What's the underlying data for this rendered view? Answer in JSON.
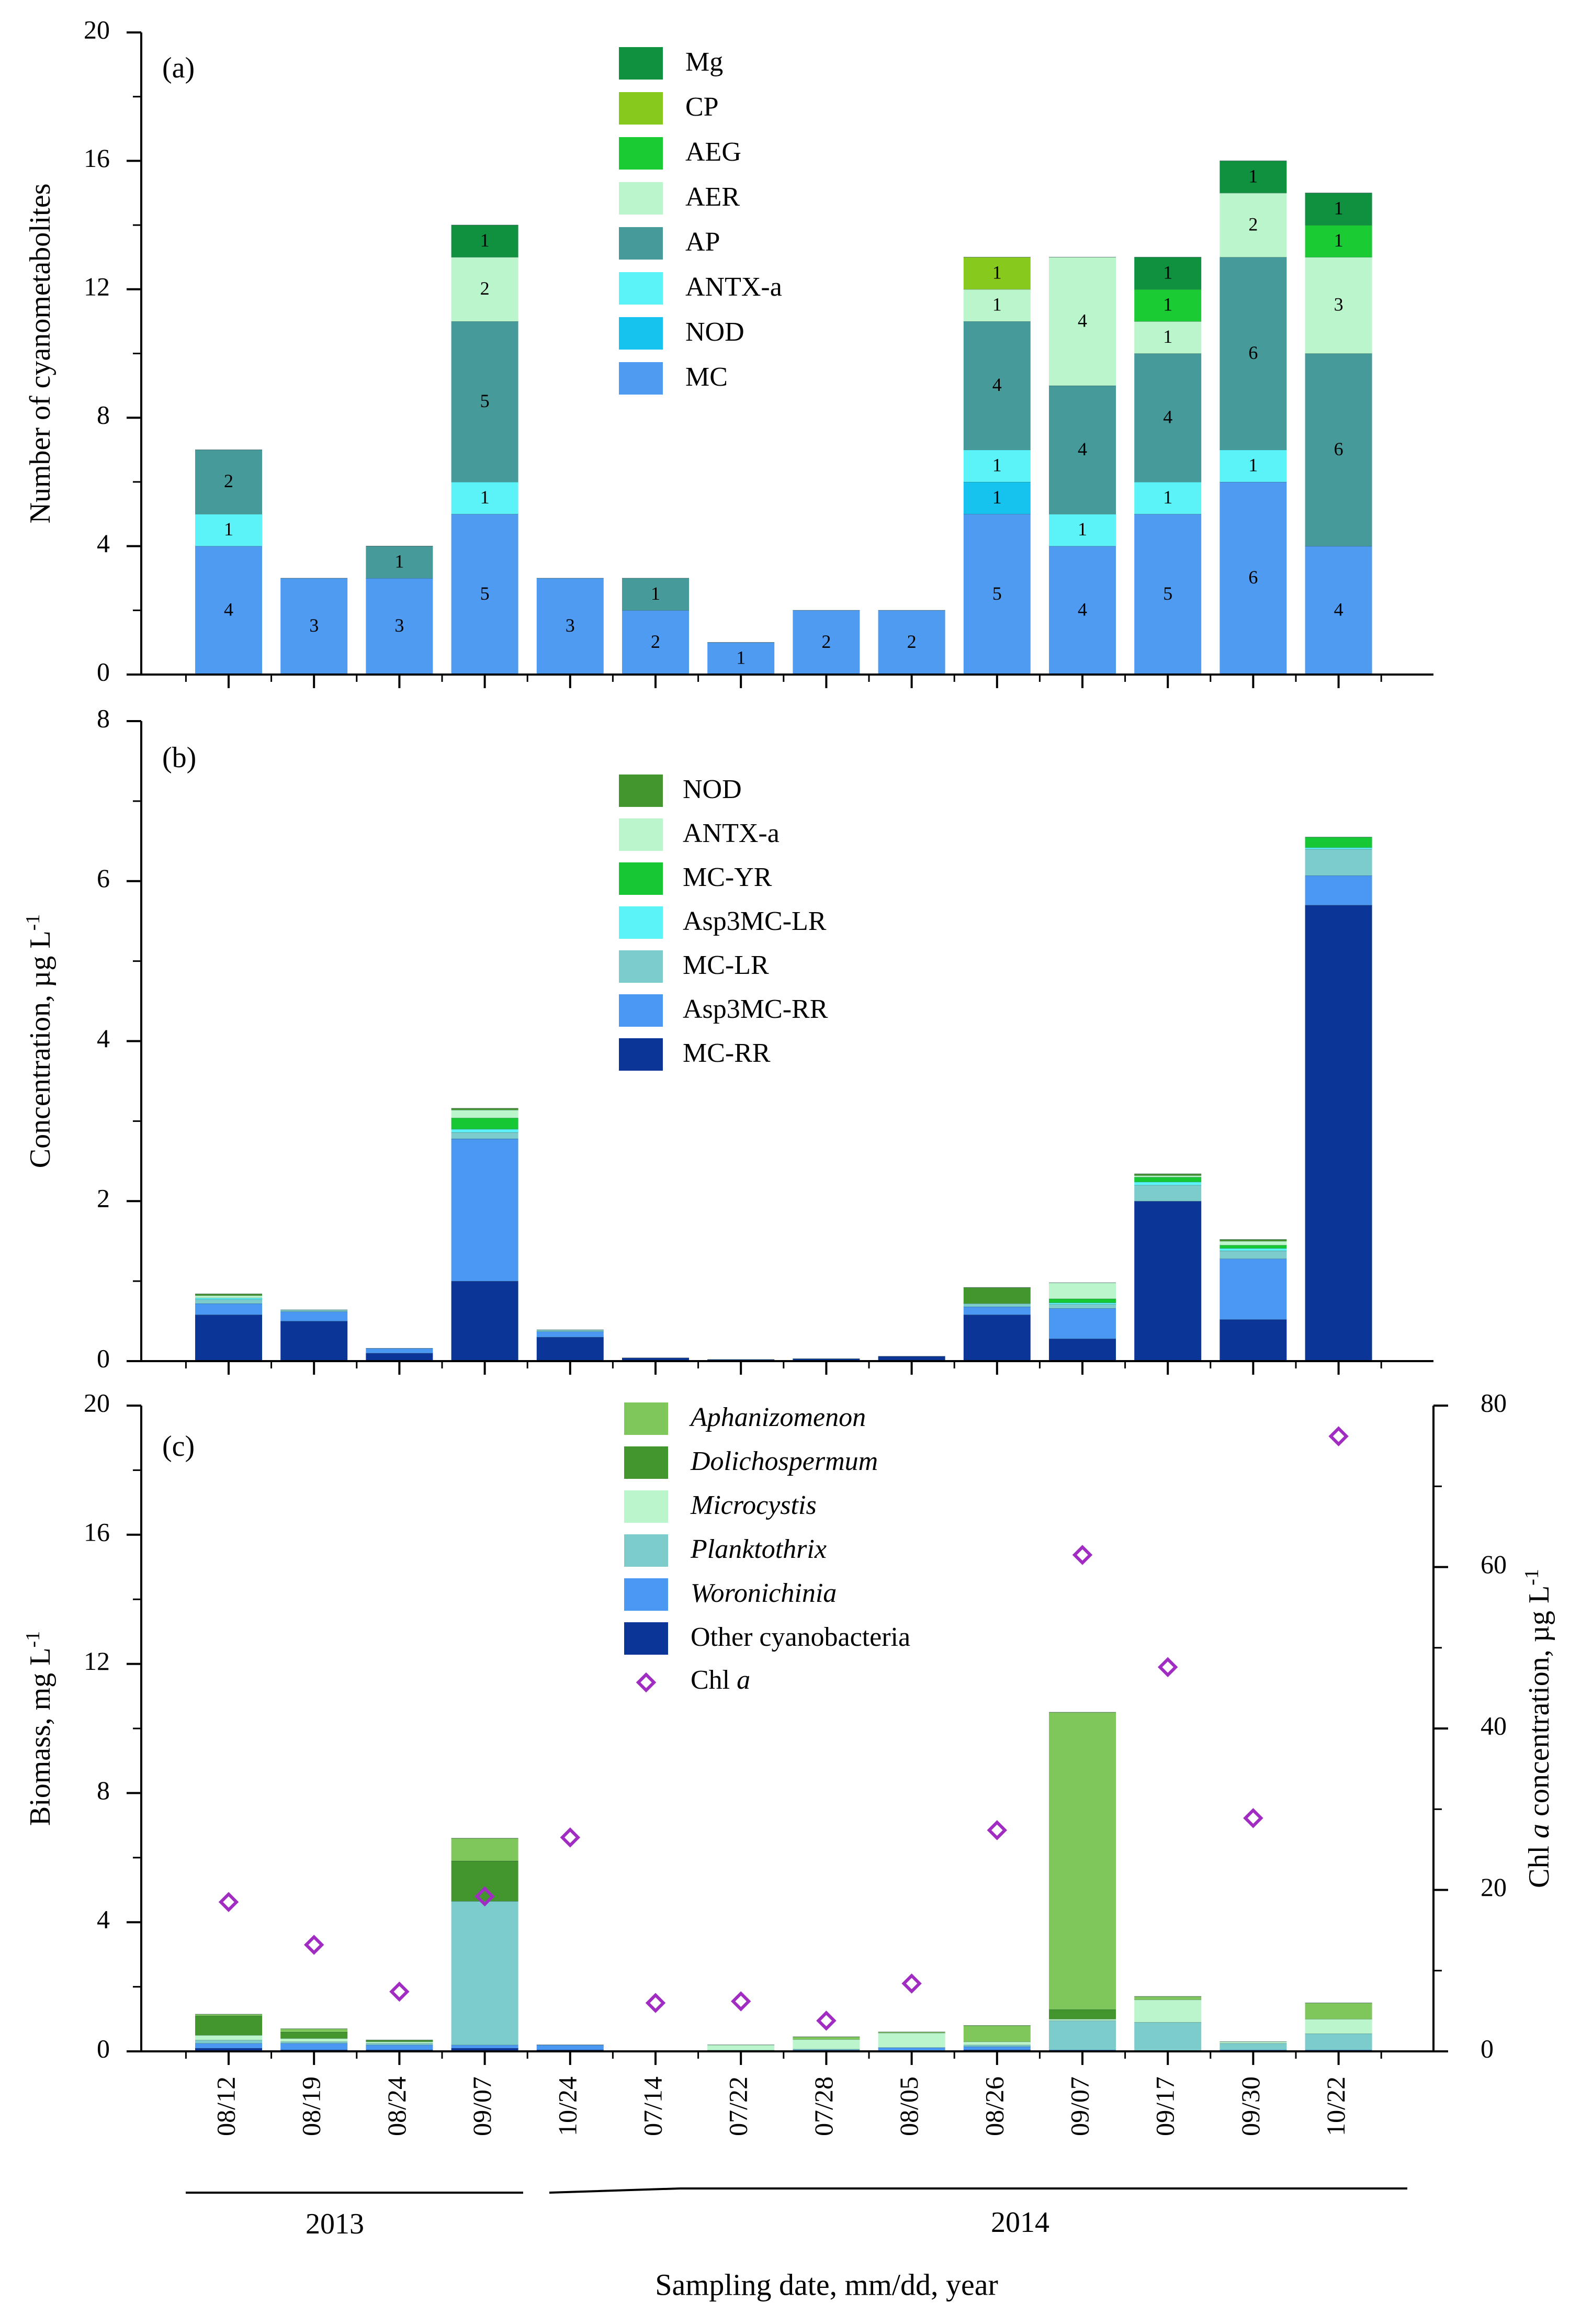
{
  "categories": [
    "08/12",
    "08/19",
    "08/24",
    "09/07",
    "10/24",
    "07/14",
    "07/22",
    "07/28",
    "08/05",
    "08/26",
    "09/07",
    "09/17",
    "09/30",
    "10/22"
  ],
  "x_axis": {
    "title": "Sampling date, mm/dd, year",
    "year_groups": [
      {
        "label": "2013",
        "from": 0,
        "to": 4
      },
      {
        "label": "2014",
        "from": 5,
        "to": 13
      }
    ]
  },
  "chart_data": [
    {
      "panel": "(a)",
      "type": "bar",
      "stacked": true,
      "ylabel": "Number of cyanometabolites",
      "ylim": [
        0,
        20
      ],
      "yticks": [
        0,
        4,
        8,
        12,
        16,
        20
      ],
      "ytick_labels": [
        "0",
        "4",
        "8",
        "12",
        "16",
        "20"
      ],
      "legend_order": [
        "Mg",
        "CP",
        "AEG",
        "AER",
        "AP",
        "ANTX-a",
        "NOD",
        "MC"
      ],
      "series": [
        {
          "name": "MC",
          "color": "#4f9bf2",
          "values": [
            4,
            3,
            3,
            5,
            3,
            2,
            1,
            2,
            2,
            5,
            4,
            5,
            6,
            4
          ],
          "labels": [
            "4",
            "3",
            "3",
            "5",
            "3",
            "2",
            "1",
            "2",
            "2",
            "5",
            "4",
            "5",
            "6",
            "4"
          ]
        },
        {
          "name": "NOD",
          "color": "#16c3ee",
          "values": [
            0,
            0,
            0,
            0,
            0,
            0,
            0,
            0,
            0,
            1,
            0,
            0,
            0,
            0
          ],
          "labels": [
            "",
            "",
            "",
            "",
            "",
            "",
            "",
            "",
            "",
            "1",
            "",
            "",
            "",
            ""
          ]
        },
        {
          "name": "ANTX-a",
          "color": "#5cf3f8",
          "values": [
            1,
            0,
            0,
            1,
            0,
            0,
            0,
            0,
            0,
            1,
            1,
            1,
            1,
            0
          ],
          "labels": [
            "1",
            "",
            "",
            "1",
            "",
            "",
            "",
            "",
            "",
            "1",
            "1",
            "1",
            "1",
            ""
          ]
        },
        {
          "name": "AP",
          "color": "#469a9a",
          "values": [
            2,
            0,
            1,
            5,
            0,
            1,
            0,
            0,
            0,
            4,
            4,
            4,
            6,
            6
          ],
          "labels": [
            "2",
            "",
            "1",
            "5",
            "",
            "1",
            "",
            "",
            "",
            "4",
            "4",
            "4",
            "6",
            "6"
          ]
        },
        {
          "name": "AER",
          "color": "#baf5cb",
          "values": [
            0,
            0,
            0,
            2,
            0,
            0,
            0,
            0,
            0,
            1,
            4,
            1,
            2,
            3
          ],
          "labels": [
            "",
            "",
            "",
            "2",
            "",
            "",
            "",
            "",
            "",
            "1",
            "4",
            "1",
            "2",
            "3"
          ]
        },
        {
          "name": "AEG",
          "color": "#1acb34",
          "values": [
            0,
            0,
            0,
            0,
            0,
            0,
            0,
            0,
            0,
            0,
            0,
            1,
            0,
            1
          ],
          "labels": [
            "",
            "",
            "",
            "",
            "",
            "",
            "",
            "",
            "",
            "",
            "",
            "1",
            "",
            "1"
          ]
        },
        {
          "name": "CP",
          "color": "#88c91e",
          "values": [
            0,
            0,
            0,
            0,
            0,
            0,
            0,
            0,
            0,
            1,
            0,
            0,
            0,
            0
          ],
          "labels": [
            "",
            "",
            "",
            "",
            "",
            "",
            "",
            "",
            "",
            "1",
            "",
            "",
            "",
            ""
          ]
        },
        {
          "name": "Mg",
          "color": "#0f9140",
          "values": [
            0,
            0,
            0,
            1,
            0,
            0,
            0,
            0,
            0,
            0,
            0,
            1,
            1,
            1
          ],
          "labels": [
            "",
            "",
            "",
            "1",
            "",
            "",
            "",
            "",
            "",
            "",
            "",
            "1",
            "1",
            "1"
          ]
        }
      ]
    },
    {
      "panel": "(b)",
      "type": "bar",
      "stacked": true,
      "ylabel_main": "Concentration, µg L",
      "ylabel_sup": "-1",
      "ylim": [
        0,
        8
      ],
      "yticks": [
        0,
        2,
        4,
        6,
        8
      ],
      "ytick_labels": [
        "0",
        "2",
        "4",
        "6",
        "8"
      ],
      "legend_order": [
        "NOD",
        "ANTX-a",
        "MC-YR",
        "Asp3MC-LR",
        "MC-LR",
        "Asp3MC-RR",
        "MC-RR"
      ],
      "series": [
        {
          "name": "MC-RR",
          "color": "#0b3596",
          "values": [
            0.58,
            0.5,
            0.1,
            1.0,
            0.3,
            0.04,
            0.02,
            0.03,
            0.06,
            0.58,
            0.28,
            2.0,
            0.52,
            5.7
          ]
        },
        {
          "name": "Asp3MC-RR",
          "color": "#4b98f2",
          "values": [
            0.14,
            0.12,
            0.06,
            1.78,
            0.07,
            0,
            0,
            0,
            0,
            0.1,
            0.38,
            0,
            0.76,
            0.37
          ]
        },
        {
          "name": "MC-LR",
          "color": "#7dcccc",
          "values": [
            0.05,
            0.02,
            0,
            0.08,
            0.02,
            0,
            0,
            0,
            0,
            0.04,
            0.05,
            0.2,
            0.1,
            0.33
          ]
        },
        {
          "name": "Asp3MC-LR",
          "color": "#5cf3f8",
          "values": [
            0.02,
            0,
            0,
            0.04,
            0,
            0,
            0,
            0,
            0,
            0,
            0.02,
            0.04,
            0.03,
            0.02
          ]
        },
        {
          "name": "MC-YR",
          "color": "#16c934",
          "values": [
            0,
            0,
            0,
            0.14,
            0,
            0,
            0,
            0,
            0,
            0,
            0.05,
            0.06,
            0.04,
            0.13
          ]
        },
        {
          "name": "ANTX-a",
          "color": "#baf5cb",
          "values": [
            0.03,
            0,
            0,
            0.1,
            0,
            0,
            0,
            0,
            0,
            0,
            0.2,
            0.02,
            0.05,
            0
          ]
        },
        {
          "name": "NOD",
          "color": "#43962d",
          "values": [
            0.02,
            0,
            0,
            0.02,
            0,
            0,
            0,
            0,
            0,
            0.2,
            0,
            0.02,
            0.02,
            0
          ]
        }
      ]
    },
    {
      "panel": "(c)",
      "type": "bar",
      "stacked": true,
      "ylabel_main": "Biomass, mg L",
      "ylabel_sup": "-1",
      "ylim": [
        0,
        20
      ],
      "yticks": [
        0,
        4,
        8,
        12,
        16,
        20
      ],
      "ytick_labels": [
        "0",
        "4",
        "8",
        "12",
        "16",
        "20"
      ],
      "legend_order": [
        "Aphanizomenon",
        "Dolichospermum",
        "Microcystis",
        "Planktothrix",
        "Woronichinia",
        "Other cyanobacteria",
        "Chl a"
      ],
      "series": [
        {
          "name": "Other cyanobacteria",
          "color": "#0b3596",
          "italic": false,
          "values": [
            0.1,
            0.05,
            0.05,
            0.1,
            0.05,
            0,
            0,
            0,
            0,
            0.05,
            0,
            0,
            0,
            0
          ]
        },
        {
          "name": "Woronichinia",
          "color": "#4b98f2",
          "italic": true,
          "values": [
            0.15,
            0.2,
            0.15,
            0.1,
            0.15,
            0.01,
            0.02,
            0.05,
            0.12,
            0.1,
            0.05,
            0,
            0.05,
            0.05
          ]
        },
        {
          "name": "Planktothrix",
          "color": "#7dcccc",
          "italic": true,
          "values": [
            0.1,
            0.05,
            0.05,
            4.45,
            0,
            0,
            0.02,
            0.02,
            0,
            0.05,
            0.9,
            0.9,
            0.2,
            0.5
          ]
        },
        {
          "name": "Microcystis",
          "color": "#baf5cb",
          "italic": true,
          "values": [
            0.15,
            0.1,
            0.05,
            0,
            0,
            0.01,
            0.16,
            0.3,
            0.45,
            0.1,
            0.05,
            0.7,
            0.05,
            0.45
          ]
        },
        {
          "name": "Dolichospermum",
          "color": "#43962d",
          "italic": true,
          "values": [
            0.6,
            0.2,
            0.05,
            1.25,
            0,
            0,
            0,
            0,
            0,
            0,
            0.3,
            0,
            0,
            0
          ]
        },
        {
          "name": "Aphanizomenon",
          "color": "#7fc65b",
          "italic": true,
          "values": [
            0.05,
            0.1,
            0,
            0.7,
            0,
            0,
            0,
            0.08,
            0.03,
            0.5,
            9.2,
            0.1,
            0,
            0.5
          ]
        }
      ],
      "secondary_axis": {
        "label_prefix": "Chl ",
        "label_italic": "a",
        "label_mid": " concentration, µg L",
        "label_sup": "-1",
        "ylim": [
          0,
          80
        ],
        "yticks": [
          0,
          20,
          40,
          60,
          80
        ],
        "ytick_labels": [
          "0",
          "20",
          "40",
          "60",
          "80"
        ]
      },
      "scatter": {
        "name": "Chl a",
        "name_prefix": "Chl ",
        "name_italic": "a",
        "marker": "diamond",
        "color": "#a12cc2",
        "values": [
          18.5,
          13.2,
          7.4,
          19.2,
          26.5,
          6.0,
          6.2,
          3.8,
          8.4,
          27.4,
          61.5,
          47.6,
          28.9,
          76.2
        ]
      }
    }
  ]
}
